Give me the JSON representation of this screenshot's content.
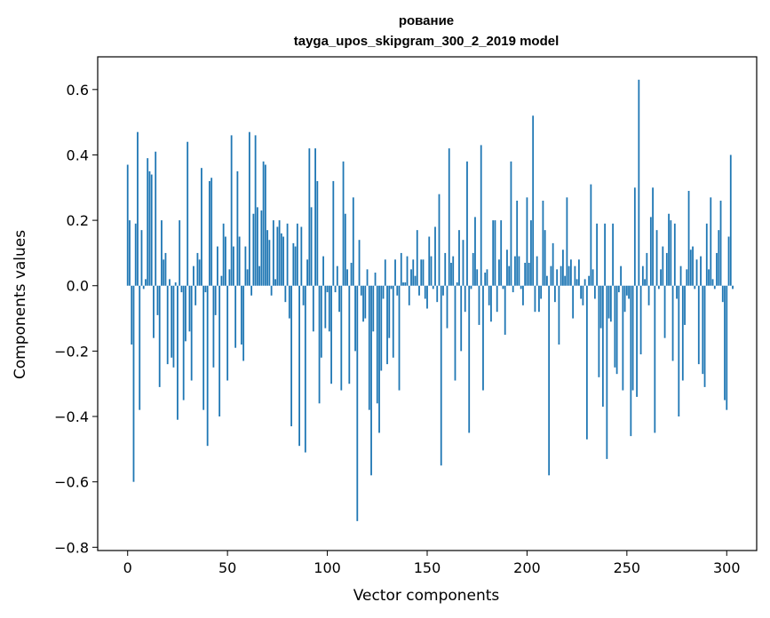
{
  "chart_data": {
    "type": "bar",
    "title": "рование",
    "subtitle": "tayga_upos_skipgram_300_2_2019 model",
    "xlabel": "Vector components",
    "ylabel": "Components values",
    "xlim": [
      -15,
      315
    ],
    "ylim": [
      -0.81,
      0.7
    ],
    "xticks": [
      0,
      50,
      100,
      150,
      200,
      250,
      300
    ],
    "xtick_labels": [
      "0",
      "50",
      "100",
      "150",
      "200",
      "250",
      "300"
    ],
    "yticks": [
      -0.8,
      -0.6,
      -0.4,
      -0.2,
      0.0,
      0.2,
      0.4,
      0.6
    ],
    "ytick_labels": [
      "−0.8",
      "−0.6",
      "−0.4",
      "−0.2",
      "0.0",
      "0.2",
      "0.4",
      "0.6"
    ],
    "grid": false,
    "bar_color": "#1f77b4",
    "x_start": 0,
    "values": [
      0.37,
      0.2,
      -0.18,
      -0.6,
      0.19,
      0.47,
      -0.38,
      0.17,
      -0.01,
      0.02,
      0.39,
      0.35,
      0.34,
      -0.16,
      0.41,
      -0.09,
      -0.31,
      0.2,
      0.08,
      0.1,
      -0.24,
      0.02,
      -0.22,
      -0.25,
      0.01,
      -0.41,
      0.2,
      -0.02,
      -0.35,
      -0.17,
      0.44,
      -0.14,
      -0.29,
      0.06,
      -0.06,
      0.1,
      0.08,
      0.36,
      -0.38,
      -0.02,
      -0.49,
      0.32,
      0.33,
      -0.25,
      -0.09,
      0.12,
      -0.4,
      0.03,
      0.19,
      0.15,
      -0.29,
      0.05,
      0.46,
      0.12,
      -0.19,
      0.35,
      0.15,
      -0.18,
      -0.23,
      0.12,
      0.05,
      0.47,
      -0.03,
      0.22,
      0.46,
      0.24,
      0.06,
      0.23,
      0.38,
      0.37,
      0.17,
      0.14,
      -0.03,
      0.2,
      0.02,
      0.18,
      0.2,
      0.16,
      0.15,
      -0.05,
      0.19,
      -0.1,
      -0.43,
      0.13,
      0.12,
      0.19,
      -0.49,
      0.18,
      -0.06,
      -0.51,
      0.08,
      0.42,
      0.24,
      -0.14,
      0.42,
      0.32,
      -0.36,
      -0.22,
      0.09,
      -0.13,
      -0.02,
      -0.14,
      -0.3,
      0.32,
      -0.02,
      0.06,
      -0.08,
      -0.32,
      0.38,
      0.22,
      0.05,
      -0.3,
      0.07,
      0.27,
      -0.2,
      -0.72,
      0.14,
      -0.03,
      -0.11,
      -0.1,
      0.05,
      -0.38,
      -0.58,
      -0.14,
      0.04,
      -0.36,
      -0.45,
      -0.26,
      -0.04,
      0.08,
      -0.24,
      -0.16,
      -0.01,
      -0.22,
      0.08,
      -0.03,
      -0.32,
      0.1,
      0.01,
      0.01,
      0.09,
      -0.06,
      0.05,
      0.08,
      0.03,
      0.17,
      -0.03,
      0.08,
      0.08,
      -0.04,
      -0.07,
      0.15,
      0.09,
      -0.01,
      0.18,
      -0.05,
      0.28,
      -0.55,
      -0.03,
      0.1,
      -0.13,
      0.42,
      0.07,
      0.09,
      -0.29,
      0.01,
      0.17,
      -0.2,
      0.14,
      -0.08,
      0.38,
      -0.45,
      -0.01,
      0.1,
      0.21,
      0.05,
      -0.12,
      0.43,
      -0.32,
      0.04,
      0.05,
      -0.06,
      -0.11,
      0.2,
      0.2,
      -0.08,
      0.08,
      0.2,
      -0.01,
      -0.15,
      0.11,
      0.06,
      0.38,
      -0.02,
      0.09,
      0.26,
      0.09,
      -0.01,
      -0.06,
      0.07,
      0.27,
      0.07,
      0.2,
      0.52,
      -0.08,
      0.09,
      -0.08,
      -0.04,
      0.26,
      0.17,
      0.03,
      -0.58,
      0.06,
      0.13,
      -0.05,
      0.05,
      -0.18,
      0.06,
      0.11,
      0.03,
      0.27,
      0.06,
      0.08,
      -0.1,
      0.06,
      0.02,
      0.08,
      -0.04,
      -0.06,
      0.02,
      -0.47,
      0.03,
      0.31,
      0.05,
      -0.04,
      0.19,
      -0.28,
      -0.13,
      -0.37,
      0.19,
      -0.53,
      -0.1,
      -0.11,
      0.19,
      -0.25,
      -0.27,
      -0.02,
      0.06,
      -0.32,
      -0.08,
      -0.03,
      -0.04,
      -0.46,
      -0.32,
      0.3,
      -0.34,
      0.63,
      -0.21,
      0.06,
      0.02,
      0.1,
      -0.06,
      0.21,
      0.3,
      -0.45,
      0.17,
      -0.01,
      0.05,
      0.12,
      -0.16,
      0.1,
      0.22,
      0.2,
      -0.23,
      0.19,
      -0.04,
      -0.4,
      0.06,
      -0.29,
      -0.12,
      0.05,
      0.29,
      0.11,
      0.12,
      -0.01,
      0.08,
      -0.24,
      0.09,
      -0.27,
      -0.31,
      0.19,
      0.05,
      0.27,
      0.02,
      -0.01,
      0.1,
      0.17,
      0.26,
      -0.05,
      -0.35,
      -0.38,
      0.15,
      0.4,
      -0.01
    ]
  }
}
